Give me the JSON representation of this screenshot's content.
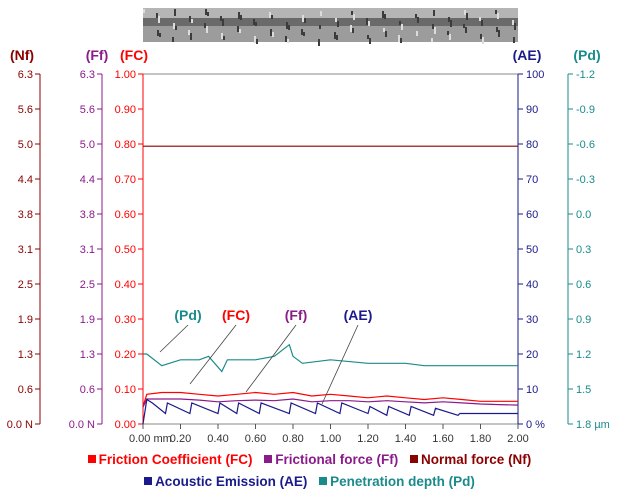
{
  "chart_data": {
    "type": "line",
    "x_axis": {
      "range": [
        0.0,
        2.0
      ],
      "tick_labels": [
        "0.00 mm",
        "0.20",
        "0.40",
        "0.60",
        "0.80",
        "1.00",
        "1.20",
        "1.40",
        "1.60",
        "1.80",
        "2.00"
      ]
    },
    "axes": {
      "Nf": {
        "title": "(Nf)",
        "color": "#8b0000",
        "range": [
          0,
          6.3
        ],
        "tick_labels": [
          "0.0 N",
          "0.6",
          "1.3",
          "1.9",
          "2.5",
          "3.1",
          "3.8",
          "4.4",
          "5.0",
          "5.6",
          "6.3"
        ]
      },
      "Ff": {
        "title": "(Ff)",
        "color": "#8b1a8b",
        "range": [
          0,
          6.3
        ],
        "tick_labels": [
          "0.0 N",
          "0.6",
          "1.3",
          "1.9",
          "2.5",
          "3.1",
          "3.8",
          "4.4",
          "5.0",
          "5.6",
          "6.3"
        ]
      },
      "FC": {
        "title": "(FC)",
        "color": "#ff0000",
        "range": [
          0,
          1.0
        ],
        "tick_labels": [
          "0.00",
          "0.10",
          "0.20",
          "0.30",
          "0.40",
          "0.50",
          "0.60",
          "0.70",
          "0.80",
          "0.90",
          "1.00"
        ]
      },
      "AE": {
        "title": "(AE)",
        "color": "#1a1a8b",
        "range": [
          0,
          100
        ],
        "tick_labels": [
          "0 %",
          "10",
          "20",
          "30",
          "40",
          "50",
          "60",
          "70",
          "80",
          "90",
          "100"
        ]
      },
      "Pd": {
        "title": "(Pd)",
        "color": "#1a8b8b",
        "range": [
          1.8,
          -1.2
        ],
        "tick_labels": [
          "1.8 µm",
          "1.5",
          "1.2",
          "0.9",
          "0.6",
          "0.3",
          "0.0",
          "-0.3",
          "-0.6",
          "-0.9",
          "-1.2"
        ]
      }
    },
    "series": [
      {
        "name": "Normal force",
        "key": "Nf",
        "axis": "Nf",
        "color": "#8b0000",
        "x": [
          0.0,
          0.5,
          1.0,
          1.5,
          2.0
        ],
        "y": [
          5.0,
          5.0,
          5.0,
          5.0,
          5.0
        ]
      },
      {
        "name": "Friction Coefficient",
        "key": "FC",
        "axis": "FC",
        "color": "#ff0000",
        "x": [
          0.0,
          0.02,
          0.1,
          0.2,
          0.3,
          0.4,
          0.5,
          0.6,
          0.7,
          0.8,
          0.9,
          1.0,
          1.1,
          1.2,
          1.3,
          1.4,
          1.5,
          1.6,
          1.7,
          1.8,
          1.9,
          2.0
        ],
        "y": [
          0.05,
          0.085,
          0.09,
          0.09,
          0.085,
          0.08,
          0.085,
          0.09,
          0.085,
          0.09,
          0.08,
          0.085,
          0.08,
          0.075,
          0.08,
          0.075,
          0.07,
          0.075,
          0.07,
          0.065,
          0.065,
          0.065
        ]
      },
      {
        "name": "Frictional force",
        "key": "Ff",
        "axis": "Ff",
        "color": "#8b1a8b",
        "x": [
          0.0,
          0.02,
          0.1,
          0.2,
          0.3,
          0.4,
          0.5,
          0.6,
          0.7,
          0.8,
          0.9,
          1.0,
          1.1,
          1.2,
          1.3,
          1.4,
          1.5,
          1.6,
          1.7,
          1.8,
          1.9,
          2.0
        ],
        "y": [
          0.3,
          0.45,
          0.45,
          0.45,
          0.43,
          0.4,
          0.42,
          0.43,
          0.42,
          0.45,
          0.4,
          0.42,
          0.42,
          0.4,
          0.42,
          0.4,
          0.38,
          0.4,
          0.38,
          0.36,
          0.35,
          0.34
        ]
      },
      {
        "name": "Acoustic Emission",
        "key": "AE",
        "axis": "AE",
        "color": "#1a1a8b",
        "x": [
          0.0,
          0.02,
          0.05,
          0.12,
          0.13,
          0.25,
          0.26,
          0.4,
          0.41,
          0.5,
          0.51,
          0.62,
          0.63,
          0.78,
          0.79,
          0.92,
          0.93,
          1.05,
          1.06,
          1.2,
          1.21,
          1.3,
          1.31,
          1.42,
          1.43,
          1.55,
          1.56,
          1.68,
          1.69,
          2.0
        ],
        "y": [
          0,
          7,
          6,
          3,
          6,
          3,
          6,
          3,
          6,
          3,
          6,
          3,
          6,
          3,
          6,
          3,
          6,
          3,
          6,
          3,
          5,
          2.5,
          5,
          2.5,
          5,
          2.5,
          4.5,
          2.5,
          3,
          3
        ]
      },
      {
        "name": "Penetration depth",
        "key": "Pd",
        "axis": "Pd",
        "color": "#1a8b8b",
        "x": [
          0.0,
          0.02,
          0.1,
          0.2,
          0.3,
          0.35,
          0.42,
          0.45,
          0.5,
          0.6,
          0.7,
          0.78,
          0.8,
          0.85,
          1.0,
          1.2,
          1.4,
          1.5,
          1.6,
          1.8,
          2.0
        ],
        "y": [
          1.2,
          1.2,
          1.3,
          1.25,
          1.25,
          1.22,
          1.35,
          1.25,
          1.25,
          1.25,
          1.22,
          1.12,
          1.22,
          1.28,
          1.25,
          1.28,
          1.28,
          1.3,
          1.3,
          1.3,
          1.3
        ]
      }
    ],
    "annotations": [
      {
        "label": "(Pd)",
        "color": "#1a8b8b"
      },
      {
        "label": "(FC)",
        "color": "#ff0000"
      },
      {
        "label": "(Ff)",
        "color": "#8b1a8b"
      },
      {
        "label": "(AE)",
        "color": "#1a1a8b"
      }
    ],
    "legend": {
      "placement": "bottom",
      "row1": [
        {
          "label": "Friction Coefficient",
          "abbr": "(FC)",
          "color": "#ff0000"
        },
        {
          "label": "Frictional force",
          "abbr": "(Ff)",
          "color": "#8b1a8b"
        },
        {
          "label": "Normal force",
          "abbr": "(Nf)",
          "color": "#8b0000"
        }
      ],
      "row2": [
        {
          "label": "Acoustic Emission",
          "abbr": "(AE)",
          "color": "#1a1a8b"
        },
        {
          "label": "Penetration depth",
          "abbr": "(Pd)",
          "color": "#1a8b8b"
        }
      ]
    },
    "grid": false
  }
}
